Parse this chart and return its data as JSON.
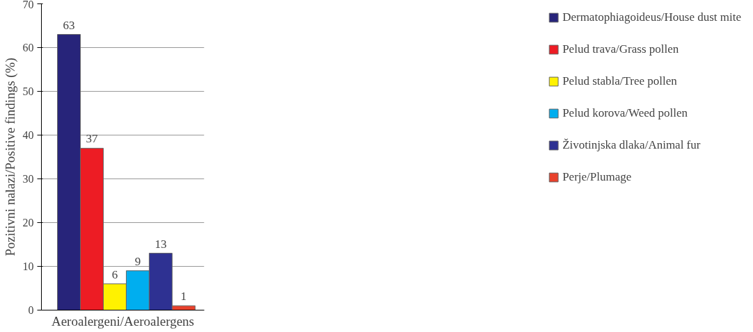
{
  "chart_data": {
    "type": "bar",
    "categories": [
      null
    ],
    "xlabel": "Aeroalergeni/Aeroalergens",
    "ylabel": "Pozitivni nalazi/Positive findings (%)",
    "ylim": [
      0,
      70
    ],
    "yticks": [
      0,
      10,
      20,
      30,
      40,
      50,
      60,
      70
    ],
    "grid": "y",
    "legend": "right",
    "data_labels": true,
    "series": [
      {
        "name": "Dermatophiagoideus/House dust mite",
        "color": "#27247a",
        "values": [
          63
        ]
      },
      {
        "name": "Pelud trava/Grass pollen",
        "color": "#ed1c24",
        "values": [
          37
        ]
      },
      {
        "name": "Pelud stabla/Tree pollen",
        "color": "#fff200",
        "values": [
          6
        ]
      },
      {
        "name": "Pelud korova/Weed pollen",
        "color": "#00aeef",
        "values": [
          9
        ]
      },
      {
        "name": "Životinjska dlaka/Animal fur",
        "color": "#2e3192",
        "values": [
          13
        ]
      },
      {
        "name": "Perje/Plumage",
        "color": "#e8412c",
        "values": [
          1
        ]
      }
    ]
  }
}
